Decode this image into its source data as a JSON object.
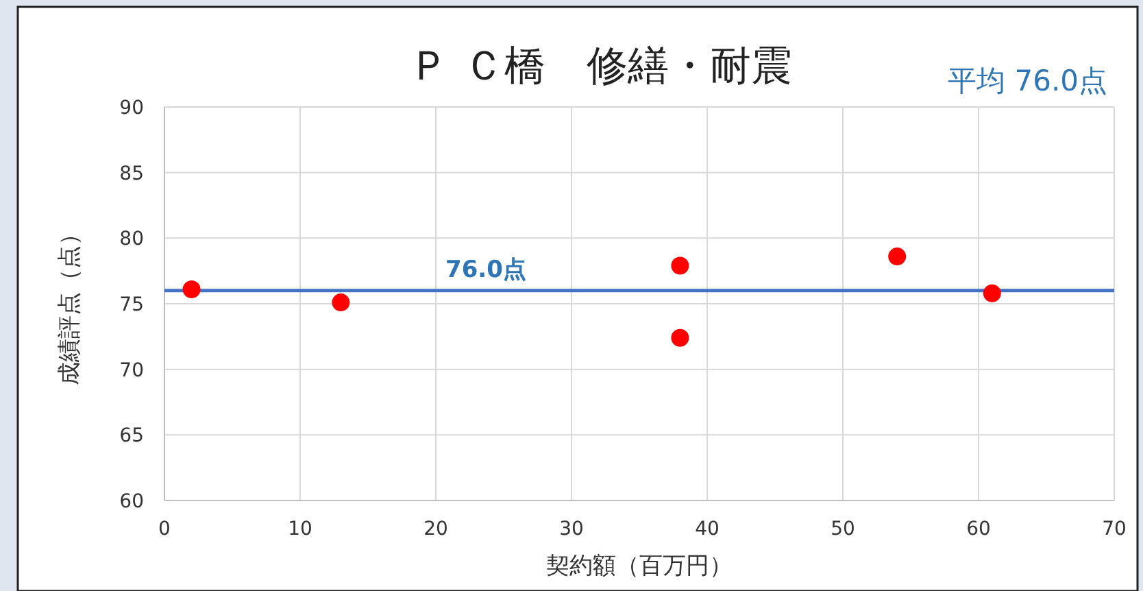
{
  "chart_data": {
    "type": "scatter",
    "title": "Ｐ Ｃ橋　修繕・耐震",
    "xlabel": "契約額（百万円）",
    "ylabel": "成績評点（点）",
    "x": [
      2,
      13,
      38,
      38,
      54,
      61
    ],
    "series": [
      {
        "color": "#ff0000",
        "values": [
          76.1,
          75.1,
          77.9,
          72.4,
          78.6,
          75.8
        ]
      }
    ],
    "marker": "circle",
    "grid": true,
    "xlim": [
      0,
      70
    ],
    "xticks": [
      0,
      10,
      20,
      30,
      40,
      50,
      60,
      70
    ],
    "ylim": [
      60,
      90
    ],
    "yticks": [
      60,
      65,
      70,
      75,
      80,
      85,
      90
    ],
    "ref_lines": [
      {
        "axis": "y",
        "value": 76,
        "label": "76.0点",
        "color": "#4472c4"
      }
    ],
    "annotations": [
      "平均 76.0点"
    ]
  }
}
